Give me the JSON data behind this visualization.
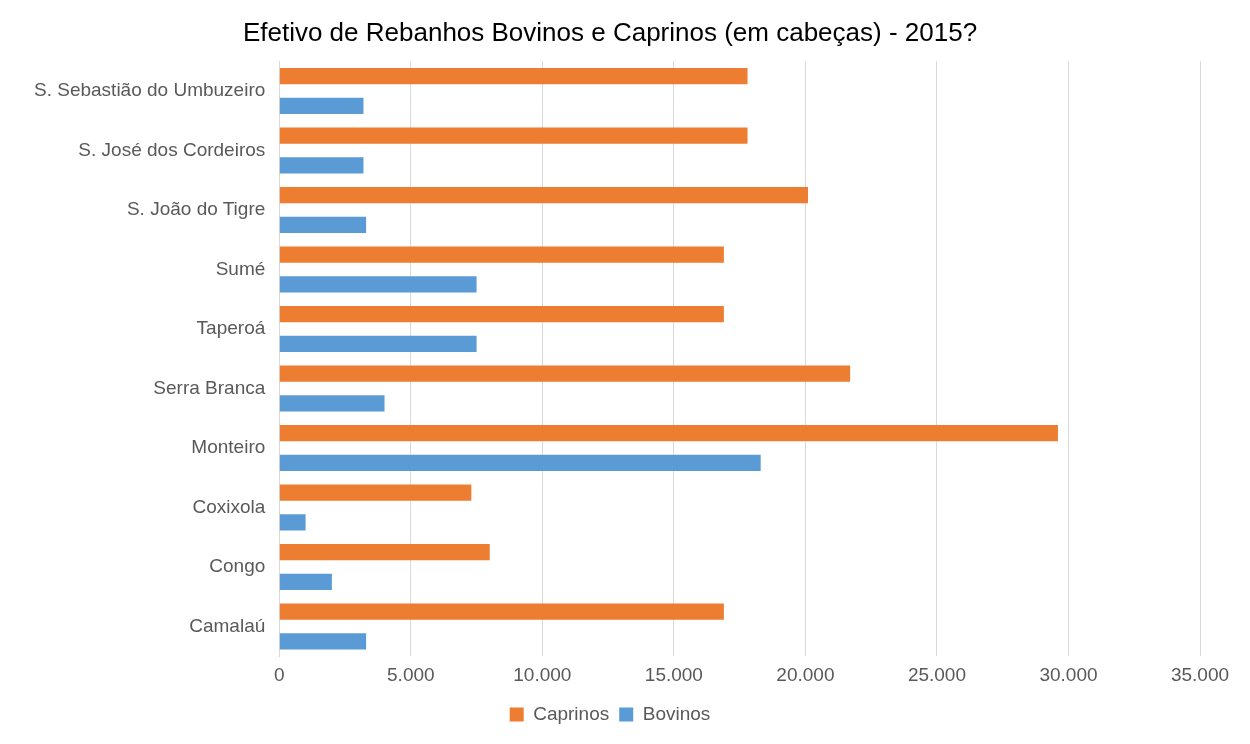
{
  "chart_data": {
    "type": "bar",
    "orientation": "horizontal",
    "title": "Efetivo de Rebanhos Bovinos e Caprinos (em cabeças) - 2015?",
    "categories": [
      "S. Sebastião do Umbuzeiro",
      "S. José dos Cordeiros",
      "S. João do Tigre",
      "Sumé",
      "Taperoá",
      "Serra Branca",
      "Monteiro",
      "Coxixola",
      "Congo",
      "Camalaú"
    ],
    "series": [
      {
        "name": "Caprinos",
        "color": "#ed7d31",
        "values": [
          17800,
          17800,
          20100,
          16900,
          16900,
          21700,
          29600,
          7300,
          8000,
          16900
        ]
      },
      {
        "name": "Bovinos",
        "color": "#5b9bd5",
        "values": [
          3200,
          3200,
          3300,
          7500,
          7500,
          4000,
          18300,
          1000,
          2000,
          3300
        ]
      }
    ],
    "xlim": [
      0,
      35000
    ],
    "xticks": [
      0,
      {
        "value": 5000,
        "label": "5.000"
      },
      {
        "value": 10000,
        "label": "10.000"
      },
      {
        "value": 15000,
        "label": "15.000"
      },
      {
        "value": 20000,
        "label": "20.000"
      },
      {
        "value": 25000,
        "label": "25.000"
      },
      {
        "value": 30000,
        "label": "30.000"
      },
      {
        "value": 35000,
        "label": "35.000"
      }
    ],
    "grid": "x",
    "legend": "bottom"
  }
}
